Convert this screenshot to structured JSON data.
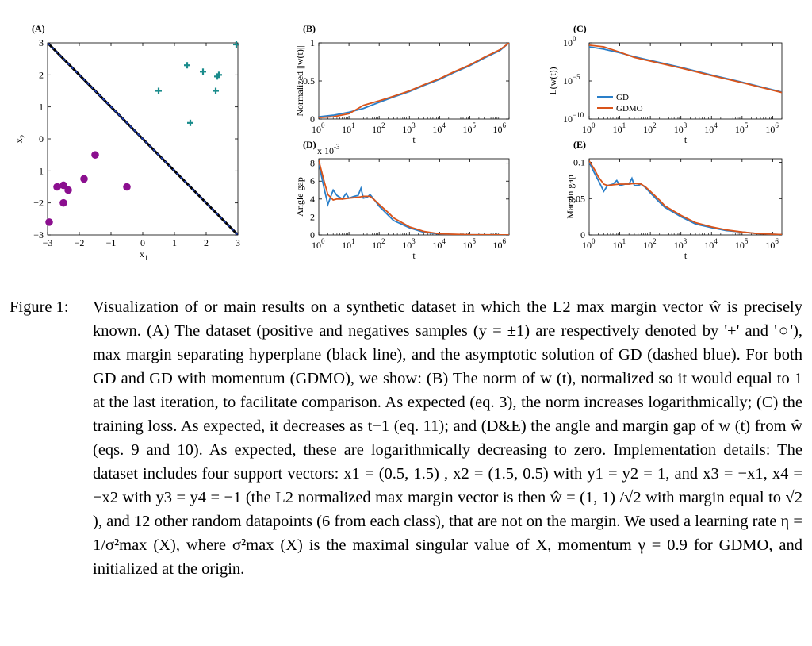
{
  "chart_data": [
    {
      "id": "A",
      "type": "scatter",
      "panel_label": "(A)",
      "xlabel": "x1",
      "ylabel": "x2",
      "xlim": [
        -3,
        3
      ],
      "ylim": [
        -3,
        3
      ],
      "xticks": [
        -3,
        -2,
        -1,
        0,
        1,
        2,
        3
      ],
      "yticks": [
        -3,
        -2,
        -1,
        0,
        1,
        2,
        3
      ],
      "series": [
        {
          "marker": "plus",
          "color": "#1a8c8c",
          "points": [
            [
              0.5,
              1.5
            ],
            [
              1.5,
              0.5
            ],
            [
              1.4,
              2.3
            ],
            [
              1.9,
              2.1
            ],
            [
              2.35,
              1.95
            ],
            [
              2.4,
              2.0
            ],
            [
              2.3,
              1.5
            ],
            [
              2.95,
              2.95
            ]
          ]
        },
        {
          "marker": "circle",
          "color": "#8b0f8f",
          "points": [
            [
              -2.95,
              -2.6
            ],
            [
              -2.7,
              -1.5
            ],
            [
              -2.5,
              -1.45
            ],
            [
              -2.5,
              -2.0
            ],
            [
              -2.35,
              -1.6
            ],
            [
              -1.85,
              -1.25
            ],
            [
              -1.5,
              -0.5
            ],
            [
              -0.5,
              -1.5
            ]
          ]
        }
      ],
      "lines": [
        {
          "from": [
            -3,
            3
          ],
          "to": [
            3,
            -3
          ],
          "color": "#000000"
        },
        {
          "from": [
            -3,
            3
          ],
          "to": [
            3,
            -3
          ],
          "color": "#1f3fbf",
          "dashed": true
        }
      ]
    },
    {
      "id": "B",
      "type": "line",
      "panel_label": "(B)",
      "xlabel": "t",
      "ylabel": "Normalized ||w(t)||",
      "xscale": "log",
      "xlim": [
        1,
        2000000
      ],
      "ylim": [
        0,
        1
      ],
      "yticks": [
        0,
        0.5,
        1
      ],
      "yticklabels": [
        "0",
        "0.5",
        "1"
      ],
      "series": [
        {
          "color": "#2a7fc9",
          "x": [
            1,
            3,
            10,
            30,
            100,
            300,
            1000,
            3000,
            10000,
            30000,
            100000,
            300000,
            1000000,
            2000000
          ],
          "y": [
            0.03,
            0.05,
            0.09,
            0.14,
            0.22,
            0.29,
            0.36,
            0.44,
            0.52,
            0.61,
            0.7,
            0.8,
            0.9,
            1.0
          ]
        },
        {
          "color": "#d9541a",
          "x": [
            1,
            3,
            10,
            20,
            30,
            100,
            300,
            1000,
            3000,
            10000,
            30000,
            100000,
            300000,
            1000000,
            2000000
          ],
          "y": [
            0.02,
            0.03,
            0.07,
            0.14,
            0.18,
            0.24,
            0.3,
            0.37,
            0.45,
            0.53,
            0.62,
            0.71,
            0.81,
            0.91,
            1.0
          ]
        }
      ]
    },
    {
      "id": "C",
      "type": "line",
      "panel_label": "(C)",
      "xlabel": "t",
      "ylabel": "L(w(t))",
      "xscale": "log",
      "yscale": "log",
      "xlim": [
        1,
        2000000
      ],
      "ylim": [
        1e-10,
        1
      ],
      "legend": {
        "position": "bottom-left",
        "entries": [
          "GD",
          "GDMO"
        ]
      },
      "series": [
        {
          "name": "GD",
          "color": "#2a7fc9",
          "x": [
            1,
            3,
            10,
            30,
            100,
            300,
            1000,
            10000,
            100000,
            1000000,
            2000000
          ],
          "y": [
            0.3,
            0.15,
            0.05,
            0.015,
            0.005,
            0.0018,
            0.0006,
            6e-05,
            7e-06,
            7e-07,
            3.5e-07
          ]
        },
        {
          "name": "GDMO",
          "color": "#d9541a",
          "x": [
            1,
            3,
            10,
            30,
            100,
            300,
            1000,
            10000,
            100000,
            1000000,
            2000000
          ],
          "y": [
            0.5,
            0.3,
            0.06,
            0.012,
            0.004,
            0.0015,
            0.0005,
            5e-05,
            6e-06,
            6e-07,
            3e-07
          ]
        }
      ]
    },
    {
      "id": "D",
      "type": "line",
      "panel_label": "(D)",
      "xlabel": "t",
      "ylabel": "Angle gap",
      "y_scale_note": "x 10",
      "y_scale_exp": "-3",
      "xscale": "log",
      "xlim": [
        1,
        2000000
      ],
      "ylim": [
        0,
        8.5
      ],
      "yticks": [
        0,
        2,
        4,
        6,
        8
      ],
      "yticklabels": [
        "0",
        "2",
        "4",
        "6",
        "8"
      ],
      "series": [
        {
          "color": "#2a7fc9",
          "x": [
            1,
            1.5,
            2,
            3,
            4,
            6,
            8,
            10,
            15,
            20,
            25,
            30,
            40,
            50,
            70,
            100,
            200,
            300,
            1000,
            3000,
            10000,
            100000,
            1000000,
            2000000
          ],
          "y": [
            8.0,
            5.2,
            3.4,
            5.0,
            4.4,
            4.0,
            4.6,
            4.1,
            4.3,
            4.4,
            5.2,
            4.1,
            4.2,
            4.5,
            3.9,
            3.2,
            2.2,
            1.6,
            0.8,
            0.3,
            0.1,
            0.02,
            0.005,
            0.002
          ]
        },
        {
          "color": "#d9541a",
          "x": [
            1,
            1.5,
            2,
            3,
            4,
            6,
            10,
            20,
            30,
            50,
            70,
            100,
            200,
            300,
            1000,
            3000,
            10000,
            100000,
            1000000,
            2000000
          ],
          "y": [
            8.3,
            6.0,
            4.5,
            3.9,
            4.0,
            4.0,
            4.1,
            4.2,
            4.3,
            4.3,
            3.9,
            3.4,
            2.5,
            1.9,
            0.9,
            0.4,
            0.12,
            0.03,
            0.006,
            0.002
          ]
        }
      ]
    },
    {
      "id": "E",
      "type": "line",
      "panel_label": "(E)",
      "xlabel": "t",
      "ylabel": "Margin gap",
      "xscale": "log",
      "xlim": [
        1,
        2000000
      ],
      "ylim": [
        0,
        0.105
      ],
      "yticks": [
        0,
        0.05,
        0.1
      ],
      "yticklabels": [
        "0",
        "0.05",
        "0.1"
      ],
      "series": [
        {
          "color": "#2a7fc9",
          "x": [
            1,
            1.5,
            2,
            3,
            4,
            6,
            8,
            10,
            15,
            20,
            25,
            30,
            40,
            50,
            70,
            100,
            200,
            300,
            1000,
            3000,
            10000,
            30000,
            100000,
            300000,
            1000000,
            2000000
          ],
          "y": [
            0.1,
            0.085,
            0.075,
            0.06,
            0.068,
            0.07,
            0.075,
            0.068,
            0.07,
            0.07,
            0.078,
            0.068,
            0.068,
            0.07,
            0.065,
            0.058,
            0.045,
            0.038,
            0.025,
            0.015,
            0.01,
            0.006,
            0.004,
            0.002,
            0.001,
            0.0005
          ]
        },
        {
          "color": "#d9541a",
          "x": [
            1,
            1.5,
            2,
            3,
            4,
            6,
            10,
            20,
            30,
            50,
            70,
            100,
            200,
            300,
            1000,
            3000,
            10000,
            30000,
            100000,
            300000,
            1000000,
            2000000
          ],
          "y": [
            0.102,
            0.09,
            0.08,
            0.07,
            0.068,
            0.069,
            0.07,
            0.07,
            0.071,
            0.07,
            0.066,
            0.06,
            0.048,
            0.04,
            0.027,
            0.017,
            0.011,
            0.007,
            0.004,
            0.002,
            0.001,
            0.0005
          ]
        }
      ]
    }
  ],
  "caption": {
    "lead": "Figure 1:",
    "lines": [
      "Visualization of or main results on a synthetic dataset in which the L2 max margin vector ŵ is precisely known. (A) The dataset (positive and negatives samples (y = ±1) are respectively denoted by '+' and '○'), max margin separating hyperplane (black line), and the asymptotic solution of GD (dashed blue). For both GD and GD with momentum (GDMO), we show: (B) The norm of w (t), normalized so it would equal to 1 at the last iteration, to facilitate comparison. As expected (eq. 3), the norm increases logarithmically; (C) the training loss. As expected, it decreases as t−1 (eq. 11); and (D&E) the angle and margin gap of w (t) from ŵ (eqs. 9 and 10). As expected, these are logarithmically decreasing to zero. Implementation details: The dataset includes four support vectors: x1 = (0.5, 1.5) , x2 = (1.5, 0.5) with y1 = y2 = 1, and x3 = −x1, x4 = −x2 with y3 = y4 = −1 (the L2 normalized max margin vector is then ŵ = (1, 1) /√2 with margin equal to √2 ), and 12 other random datapoints (6 from each class), that are not on the margin. We used a learning rate η = 1/σ²max (X), where σ²max (X) is the maximal singular value of X, momentum γ = 0.9 for GDMO, and initialized at the origin."
    ]
  }
}
